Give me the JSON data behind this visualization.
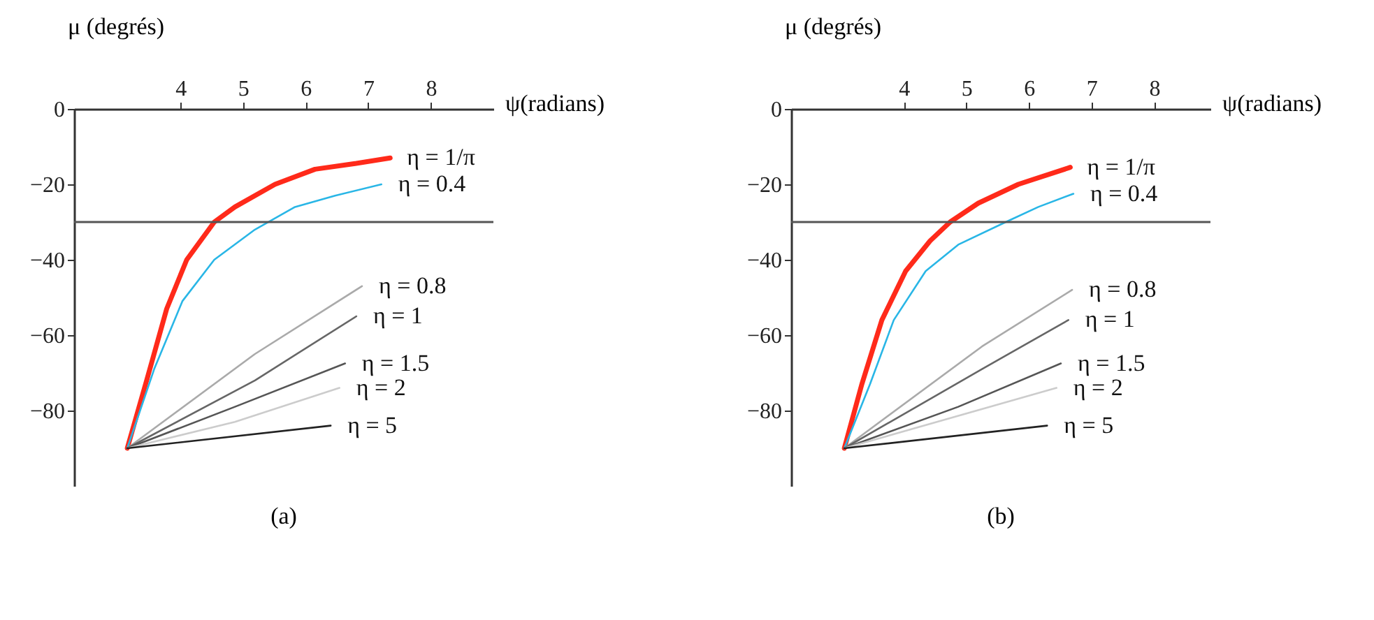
{
  "chart_data": [
    {
      "type": "line",
      "xlabel": "ψ(radians)",
      "ylabel": "μ (degrés)",
      "xlim": [
        2.3,
        9
      ],
      "ylim": [
        -100,
        0
      ],
      "xticks": [
        4,
        5,
        6,
        7,
        8
      ],
      "yticks": [
        0,
        -20,
        -40,
        -60,
        -80
      ],
      "grid": false,
      "marker": "none",
      "line_style": "solid",
      "ref_lines": [
        {
          "axis": "y",
          "value": -30,
          "color": "#555555"
        }
      ],
      "annotations": [
        "(a)"
      ],
      "series": [
        {
          "name": "η = 1/π",
          "color": "#ff2a1a",
          "x": [
            3.15,
            3.46,
            3.78,
            4.1,
            4.54,
            4.87,
            5.51,
            6.15,
            6.79,
            7.35
          ],
          "values": [
            -90,
            -72,
            -53,
            -40,
            -30,
            -26,
            -20,
            -16,
            -14.5,
            -13
          ]
        },
        {
          "name": "η = 0.4",
          "color": "#29b6e6",
          "x": [
            3.15,
            3.58,
            4.03,
            4.54,
            5.19,
            5.83,
            6.47,
            7.21
          ],
          "values": [
            -90,
            -69,
            -51,
            -40,
            -32,
            -26,
            -23,
            -20
          ]
        },
        {
          "name": "η = 0.8",
          "color": "#aaaaaa",
          "x": [
            3.15,
            5.19,
            6.9
          ],
          "values": [
            -90,
            -65,
            -47
          ]
        },
        {
          "name": "η = 1",
          "color": "#666666",
          "x": [
            3.15,
            5.19,
            6.81
          ],
          "values": [
            -90,
            -72,
            -55
          ]
        },
        {
          "name": "η = 1.5",
          "color": "#555555",
          "x": [
            3.15,
            4.87,
            6.63
          ],
          "values": [
            -90,
            -79,
            -67.5
          ]
        },
        {
          "name": "η = 2",
          "color": "#cccccc",
          "x": [
            3.15,
            4.87,
            6.54
          ],
          "values": [
            -90,
            -83,
            -74
          ]
        },
        {
          "name": "η = 5",
          "color": "#222222",
          "x": [
            3.15,
            6.4
          ],
          "values": [
            -90,
            -84
          ]
        }
      ]
    },
    {
      "type": "line",
      "xlabel": "ψ(radians)",
      "ylabel": "μ (degrés)",
      "xlim": [
        2.2,
        8.9
      ],
      "ylim": [
        -100,
        0
      ],
      "xticks": [
        4,
        5,
        6,
        7,
        8
      ],
      "yticks": [
        0,
        -20,
        -40,
        -60,
        -80
      ],
      "grid": false,
      "marker": "none",
      "line_style": "solid",
      "ref_lines": [
        {
          "axis": "y",
          "value": -30,
          "color": "#555555"
        }
      ],
      "annotations": [
        "(b)"
      ],
      "series": [
        {
          "name": "η = 1/π",
          "color": "#ff2a1a",
          "x": [
            3.05,
            3.33,
            3.65,
            4.03,
            4.42,
            4.74,
            5.19,
            5.83,
            6.66
          ],
          "values": [
            -90,
            -73,
            -56,
            -43,
            -35,
            -30,
            -25,
            -20,
            -15.5
          ]
        },
        {
          "name": "η = 0.4",
          "color": "#29b6e6",
          "x": [
            3.05,
            3.46,
            3.84,
            4.35,
            4.87,
            5.63,
            6.15,
            6.71
          ],
          "values": [
            -90,
            -73,
            -56,
            -43,
            -36,
            -30,
            -26,
            -22.5
          ]
        },
        {
          "name": "η = 0.8",
          "color": "#aaaaaa",
          "x": [
            3.05,
            5.25,
            6.69
          ],
          "values": [
            -90,
            -63,
            -48
          ]
        },
        {
          "name": "η = 1",
          "color": "#666666",
          "x": [
            3.05,
            5.25,
            6.63
          ],
          "values": [
            -90,
            -69,
            -56
          ]
        },
        {
          "name": "η = 1.5",
          "color": "#555555",
          "x": [
            3.05,
            4.87,
            6.51
          ],
          "values": [
            -90,
            -79,
            -67.5
          ]
        },
        {
          "name": "η = 2",
          "color": "#cccccc",
          "x": [
            3.05,
            6.44
          ],
          "values": [
            -90,
            -74
          ]
        },
        {
          "name": "η = 5",
          "color": "#222222",
          "x": [
            3.05,
            6.29
          ],
          "values": [
            -90,
            -84
          ]
        }
      ]
    }
  ]
}
